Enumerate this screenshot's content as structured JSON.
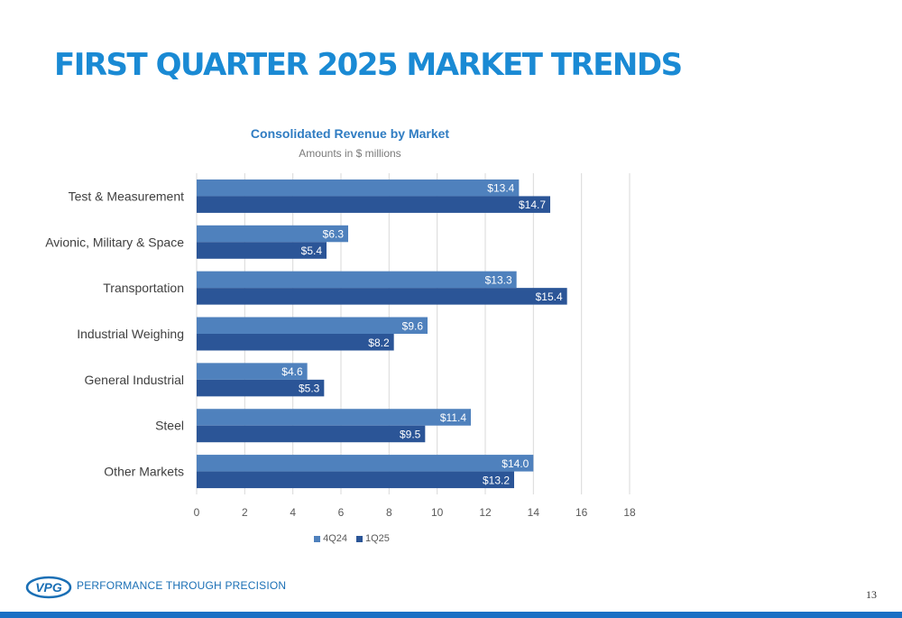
{
  "page": {
    "title": "FIRST QUARTER 2025 MARKET TRENDS",
    "tagline": "PERFORMANCE THROUGH PRECISION",
    "logo_text": "VPG",
    "page_number": "13"
  },
  "colors": {
    "title": "#1a8ad4",
    "series_4q24": "#4f81bd",
    "series_1q25": "#2b5597",
    "bottom_bar": "#1a6fc4"
  },
  "chart_data": {
    "type": "bar",
    "orientation": "horizontal",
    "title": "Consolidated Revenue by Market",
    "subtitle": "Amounts in $ millions",
    "categories": [
      "Test & Measurement",
      "Avionic, Military & Space",
      "Transportation",
      "Industrial Weighing",
      "General Industrial",
      "Steel",
      "Other Markets"
    ],
    "series": [
      {
        "name": "4Q24",
        "values": [
          13.4,
          6.3,
          13.3,
          9.6,
          4.6,
          11.4,
          14.0
        ],
        "labels": [
          "$13.4",
          "$6.3",
          "$13.3",
          "$9.6",
          "$4.6",
          "$11.4",
          "$14.0"
        ]
      },
      {
        "name": "1Q25",
        "values": [
          14.7,
          5.4,
          15.4,
          8.2,
          5.3,
          9.5,
          13.2
        ],
        "labels": [
          "$14.7",
          "$5.4",
          "$15.4",
          "$8.2",
          "$5.3",
          "$9.5",
          "$13.2"
        ]
      }
    ],
    "xlim": [
      0,
      18
    ],
    "xticks": [
      "0",
      "2",
      "4",
      "6",
      "8",
      "10",
      "12",
      "14",
      "16",
      "18"
    ],
    "grid": true,
    "legend_position": "bottom"
  }
}
